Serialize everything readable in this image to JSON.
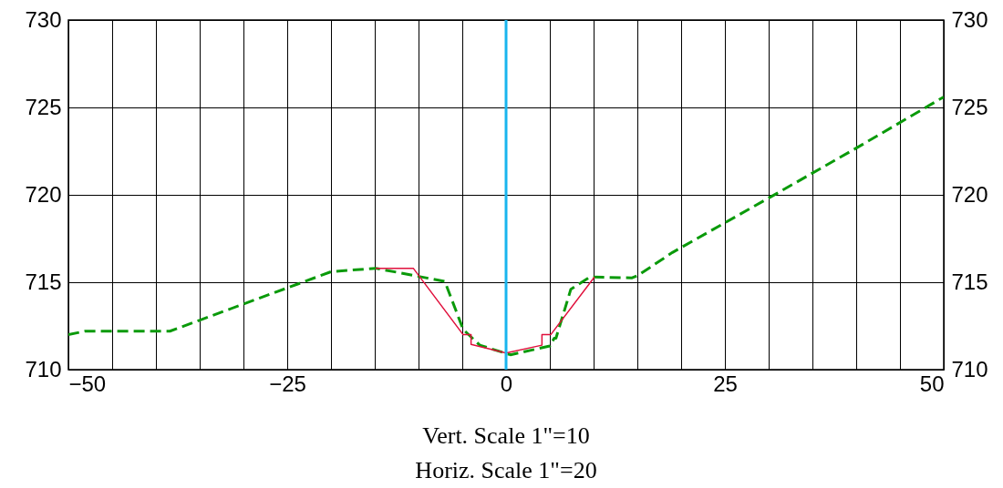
{
  "chart_data": {
    "type": "line",
    "annotations": [
      "Vert. Scale 1\"=10",
      "Horiz. Scale 1\"=20"
    ],
    "series": [
      {
        "color": "#0a9a0a",
        "line_style": "dashed",
        "x": [
          -50,
          -48.1,
          -38.4,
          -20,
          -14.9,
          -7,
          -4.9,
          -3,
          0.5,
          5,
          5.5,
          5.7,
          7.4,
          9.6,
          14.4,
          15.1,
          19,
          31,
          40.1,
          50
        ],
        "values": [
          712,
          712.2,
          712.2,
          715.6,
          715.8,
          715.05,
          712.3,
          711.4,
          710.85,
          711.35,
          711.8,
          711.8,
          714.6,
          715.3,
          715.25,
          715.4,
          716.7,
          720.1,
          722.7,
          725.6
        ]
      },
      {
        "color": "#e0103c",
        "line_style": "solid",
        "x": [
          -14.9,
          -10.6,
          -4.9,
          -4,
          -4,
          0,
          4.1,
          4.1,
          5.1,
          10.1
        ],
        "values": [
          715.8,
          715.8,
          712,
          712,
          711.45,
          710.95,
          711.4,
          712,
          712,
          715.3
        ]
      }
    ],
    "xlim": [
      -50,
      50
    ],
    "xticks": [
      -50,
      {
        "value": -45,
        "label": null
      },
      {
        "value": -40,
        "label": null
      },
      {
        "value": -35,
        "label": null
      },
      {
        "value": -30,
        "label": null
      },
      -25,
      {
        "value": -20,
        "label": null
      },
      {
        "value": -15,
        "label": null
      },
      {
        "value": -10,
        "label": null
      },
      {
        "value": -5,
        "label": null
      },
      0,
      {
        "value": 5,
        "label": null
      },
      {
        "value": 10,
        "label": null
      },
      {
        "value": 15,
        "label": null
      },
      {
        "value": 20,
        "label": null
      },
      25,
      {
        "value": 30,
        "label": null
      },
      {
        "value": 35,
        "label": null
      },
      {
        "value": 40,
        "label": null
      },
      {
        "value": 45,
        "label": null
      },
      50
    ],
    "ylim": [
      710,
      730
    ],
    "yticks": [
      710,
      715,
      720,
      725,
      730
    ],
    "y2lim": [
      710,
      730
    ],
    "y2ticks": [
      710,
      715,
      720,
      725,
      730
    ],
    "grid": true,
    "marker": "none",
    "ref_lines": [
      {
        "axis": "x",
        "value": 0,
        "color": "#19b5ee"
      }
    ]
  }
}
